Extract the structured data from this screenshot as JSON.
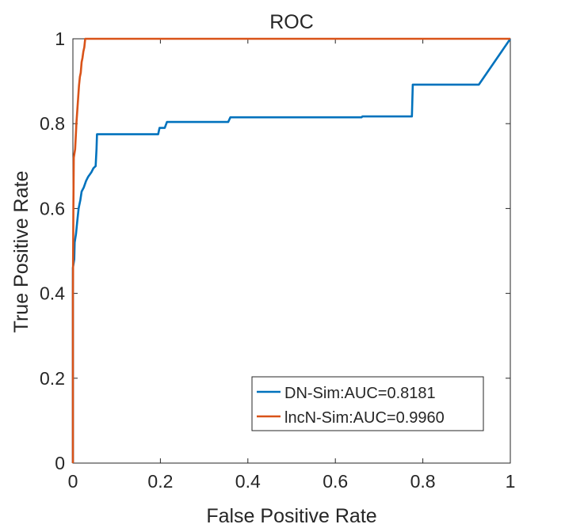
{
  "chart_data": {
    "type": "line",
    "title": "ROC",
    "xlabel": "False Positive Rate",
    "ylabel": "True Positive Rate",
    "xlim": [
      0,
      1
    ],
    "ylim": [
      0,
      1
    ],
    "xticks": [
      "0",
      "0.2",
      "0.4",
      "0.6",
      "0.8",
      "1"
    ],
    "yticks": [
      "0",
      "0.2",
      "0.4",
      "0.6",
      "0.8",
      "1"
    ],
    "grid": false,
    "legend_position": "bottom-right",
    "series": [
      {
        "name": "DN-Sim:AUC=0.8181",
        "color": "#0072BD",
        "points": [
          [
            0,
            0
          ],
          [
            0,
            0.27
          ],
          [
            0,
            0.46
          ],
          [
            0.003,
            0.48
          ],
          [
            0.004,
            0.52
          ],
          [
            0.007,
            0.54
          ],
          [
            0.01,
            0.57
          ],
          [
            0.013,
            0.6
          ],
          [
            0.017,
            0.62
          ],
          [
            0.02,
            0.64
          ],
          [
            0.025,
            0.65
          ],
          [
            0.03,
            0.665
          ],
          [
            0.035,
            0.675
          ],
          [
            0.042,
            0.685
          ],
          [
            0.047,
            0.695
          ],
          [
            0.052,
            0.7
          ],
          [
            0.054,
            0.74
          ],
          [
            0.055,
            0.775
          ],
          [
            0.195,
            0.775
          ],
          [
            0.198,
            0.79
          ],
          [
            0.21,
            0.79
          ],
          [
            0.215,
            0.804
          ],
          [
            0.355,
            0.804
          ],
          [
            0.36,
            0.815
          ],
          [
            0.66,
            0.815
          ],
          [
            0.662,
            0.817
          ],
          [
            0.775,
            0.817
          ],
          [
            0.777,
            0.892
          ],
          [
            0.928,
            0.892
          ],
          [
            1.0,
            1.0
          ]
        ]
      },
      {
        "name": "lncN-Sim:AUC=0.9960",
        "color": "#D95319",
        "points": [
          [
            0,
            0
          ],
          [
            0,
            0.4
          ],
          [
            0.001,
            0.6
          ],
          [
            0.002,
            0.72
          ],
          [
            0.005,
            0.74
          ],
          [
            0.007,
            0.78
          ],
          [
            0.008,
            0.8
          ],
          [
            0.01,
            0.83
          ],
          [
            0.012,
            0.86
          ],
          [
            0.014,
            0.89
          ],
          [
            0.016,
            0.91
          ],
          [
            0.018,
            0.92
          ],
          [
            0.02,
            0.945
          ],
          [
            0.022,
            0.955
          ],
          [
            0.024,
            0.97
          ],
          [
            0.026,
            0.98
          ],
          [
            0.028,
            1.0
          ],
          [
            1.0,
            1.0
          ]
        ]
      }
    ]
  }
}
